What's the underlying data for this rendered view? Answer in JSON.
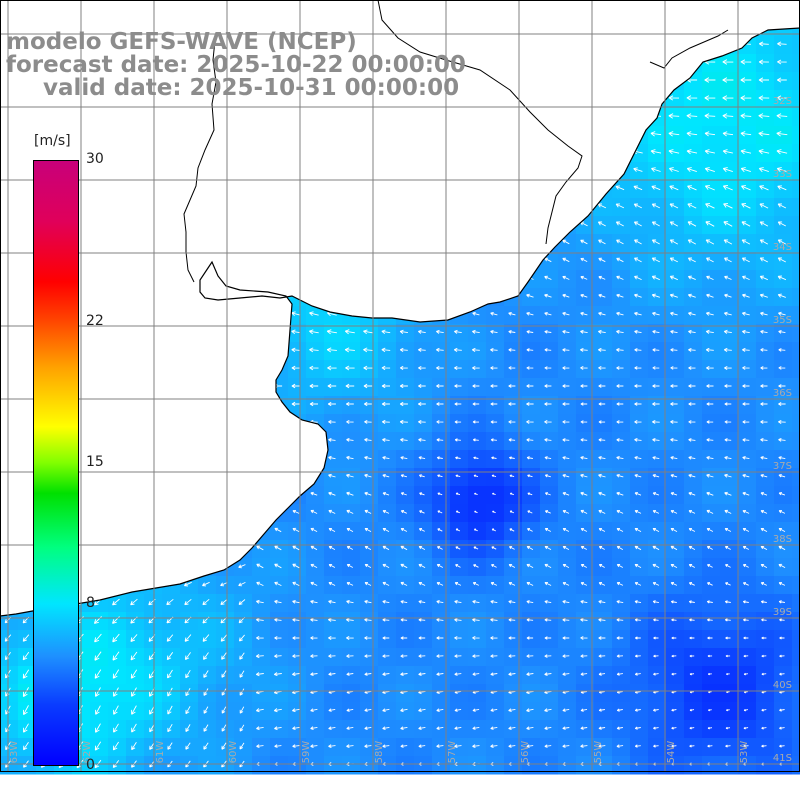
{
  "title": {
    "line1": "modelo GEFS-WAVE (NCEP)",
    "line2": "forecast date: 2025-10-22 00:00:00",
    "line3": "valid date: 2025-10-31 00:00:00"
  },
  "colorbar": {
    "unit": "[m/s]",
    "ticks": [
      "30",
      "22",
      "15",
      "8",
      "0"
    ],
    "tick_values": [
      30,
      22,
      15,
      8,
      0
    ],
    "range": [
      0,
      30
    ]
  },
  "map": {
    "lat_labels": [
      "32S",
      "33S",
      "34S",
      "35S",
      "36S",
      "37S",
      "38S",
      "39S",
      "40S",
      "41S"
    ],
    "lon_labels": [
      "63W",
      "62W",
      "61W",
      "60W",
      "59W",
      "58W",
      "57W",
      "56W",
      "55W",
      "54W",
      "53W"
    ],
    "field": "wind speed and direction",
    "colors": {
      "land": "#ffffff",
      "coast": "#000000",
      "grid": "#808080",
      "arrow": "#ffffff",
      "low": "#0000ff",
      "mid": "#00e6ff",
      "high": "#00ff00"
    }
  }
}
